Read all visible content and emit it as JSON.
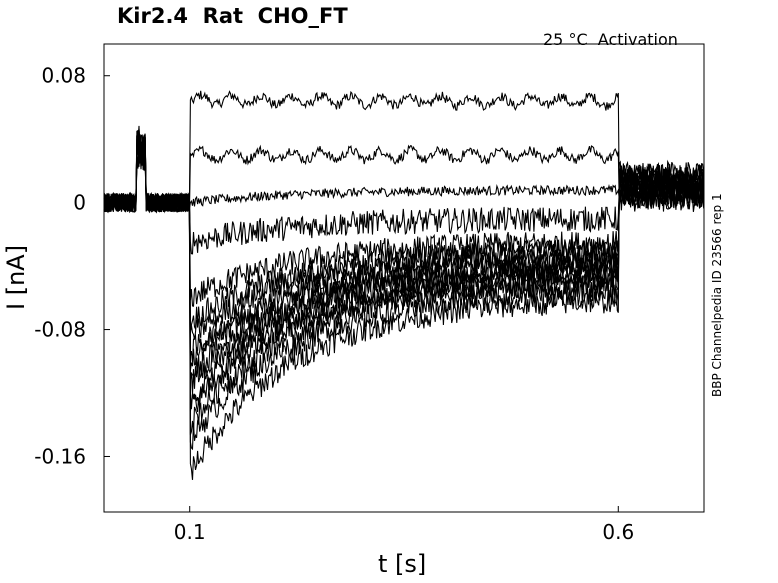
{
  "chart_data": {
    "type": "line",
    "title": "Kir2.4  Rat  CHO_FT",
    "annotation": "25 °C  Activation",
    "side_note": "BBP Channelpedia ID 23566 rep 1",
    "xlabel": "t [s]",
    "ylabel": "I [nA]",
    "xlim": [
      0,
      0.7
    ],
    "ylim": [
      -0.195,
      0.1
    ],
    "xticks": [
      {
        "value": 0.1,
        "label": "0.1"
      },
      {
        "value": 0.6,
        "label": "0.6"
      }
    ],
    "yticks": [
      {
        "value": 0.08,
        "label": "0.08"
      },
      {
        "value": 0,
        "label": "0"
      },
      {
        "value": -0.08,
        "label": "-0.08"
      },
      {
        "value": -0.16,
        "label": "-0.16"
      }
    ],
    "grid": false,
    "legend": "none",
    "line_color": "#000000",
    "series_levels": {
      "baseline_before_step": 0.0,
      "artifact_window": [
        0.038,
        0.048
      ],
      "artifact_peak": 0.04,
      "step_start": 0.1,
      "step_end": 0.6,
      "tail_mean": 0.01,
      "tail_spread": 0.008
    },
    "series": [
      {
        "start": 0.065,
        "end": 0.064
      },
      {
        "start": 0.03,
        "end": 0.03
      },
      {
        "start": 0.0,
        "end": 0.008
      },
      {
        "start": -0.025,
        "end": -0.01
      },
      {
        "start": -0.06,
        "end": -0.025
      },
      {
        "start": -0.075,
        "end": -0.03
      },
      {
        "start": -0.085,
        "end": -0.03
      },
      {
        "start": -0.095,
        "end": -0.035
      },
      {
        "start": -0.1,
        "end": -0.038
      },
      {
        "start": -0.11,
        "end": -0.04
      },
      {
        "start": -0.115,
        "end": -0.042
      },
      {
        "start": -0.125,
        "end": -0.045
      },
      {
        "start": -0.13,
        "end": -0.048
      },
      {
        "start": -0.14,
        "end": -0.05
      },
      {
        "start": -0.15,
        "end": -0.055
      },
      {
        "start": -0.17,
        "end": -0.06
      }
    ]
  }
}
